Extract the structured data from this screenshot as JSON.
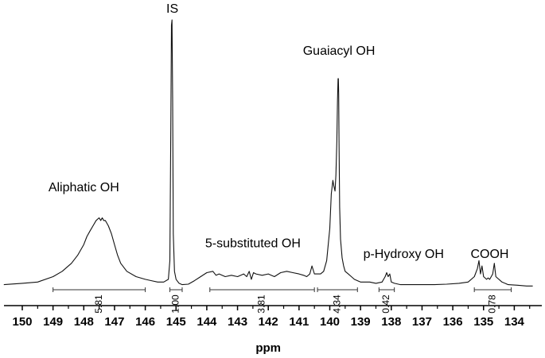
{
  "chart_data": {
    "type": "line",
    "xlabel": "ppm",
    "xlim": [
      150.6,
      133.4
    ],
    "x_reversed": true,
    "x_ticks": [
      "150",
      "149",
      "148",
      "147",
      "146",
      "145",
      "144",
      "143",
      "142",
      "141",
      "140",
      "139",
      "138",
      "137",
      "136",
      "135",
      "134"
    ],
    "series": [
      {
        "x": [
          150.6,
          150.0,
          149.5,
          149.0,
          148.7,
          148.4,
          148.2,
          148.0,
          147.9,
          147.8,
          147.7,
          147.6,
          147.5,
          147.45,
          147.4,
          147.35,
          147.3,
          147.25,
          147.2,
          147.1,
          147.0,
          146.9,
          146.8,
          146.6,
          146.3,
          146.0,
          145.8,
          145.6,
          145.4,
          145.25,
          145.2,
          145.17,
          145.15,
          145.13,
          145.11,
          145.09,
          145.05,
          145.0,
          144.9,
          144.8,
          144.6,
          144.4,
          144.2,
          144.0,
          143.8,
          143.7,
          143.6,
          143.4,
          143.2,
          143.0,
          142.8,
          142.7,
          142.62,
          142.55,
          142.48,
          142.4,
          142.2,
          142.0,
          141.8,
          141.6,
          141.4,
          141.2,
          141.0,
          140.85,
          140.75,
          140.65,
          140.58,
          140.5,
          140.3,
          140.2,
          140.1,
          140.0,
          139.95,
          139.9,
          139.87,
          139.83,
          139.8,
          139.77,
          139.75,
          139.73,
          139.72,
          139.71,
          139.7,
          139.68,
          139.65,
          139.6,
          139.55,
          139.5,
          139.4,
          139.3,
          139.2,
          139.1,
          139.0,
          138.9,
          138.7,
          138.5,
          138.3,
          138.2,
          138.15,
          138.1,
          138.05,
          138.0,
          137.9,
          137.7,
          137.5,
          137.3,
          137.0,
          136.6,
          136.2,
          135.8,
          135.5,
          135.3,
          135.2,
          135.15,
          135.1,
          135.05,
          135.0,
          134.9,
          134.85,
          134.8,
          134.75,
          134.7,
          134.65,
          134.6,
          134.4,
          134.2,
          133.9,
          133.6,
          133.4
        ],
        "y": [
          0.01,
          0.015,
          0.02,
          0.04,
          0.06,
          0.09,
          0.12,
          0.16,
          0.19,
          0.21,
          0.23,
          0.25,
          0.26,
          0.25,
          0.26,
          0.25,
          0.25,
          0.24,
          0.23,
          0.2,
          0.16,
          0.12,
          0.09,
          0.06,
          0.04,
          0.03,
          0.025,
          0.02,
          0.02,
          0.03,
          0.1,
          0.6,
          0.98,
          1.0,
          0.7,
          0.2,
          0.06,
          0.03,
          0.015,
          0.01,
          0.012,
          0.025,
          0.04,
          0.055,
          0.06,
          0.045,
          0.05,
          0.04,
          0.045,
          0.04,
          0.05,
          0.04,
          0.06,
          0.03,
          0.055,
          0.05,
          0.045,
          0.05,
          0.04,
          0.055,
          0.06,
          0.055,
          0.05,
          0.045,
          0.04,
          0.05,
          0.08,
          0.05,
          0.05,
          0.06,
          0.1,
          0.22,
          0.35,
          0.4,
          0.38,
          0.36,
          0.42,
          0.55,
          0.7,
          0.78,
          0.78,
          0.72,
          0.55,
          0.3,
          0.18,
          0.11,
          0.08,
          0.06,
          0.05,
          0.04,
          0.03,
          0.025,
          0.02,
          0.02,
          0.02,
          0.015,
          0.02,
          0.04,
          0.055,
          0.04,
          0.05,
          0.02,
          0.015,
          0.01,
          0.01,
          0.01,
          0.01,
          0.01,
          0.012,
          0.015,
          0.02,
          0.04,
          0.07,
          0.1,
          0.05,
          0.08,
          0.04,
          0.03,
          0.035,
          0.03,
          0.04,
          0.05,
          0.09,
          0.04,
          0.02,
          0.01,
          0.008,
          0.005,
          0.005
        ]
      }
    ],
    "annotations": [
      {
        "label": "IS",
        "x": 145.12,
        "y": 1.0
      },
      {
        "label": "Aliphatic OH",
        "x": 148.0,
        "y": 0.33
      },
      {
        "label": "5-substituted OH",
        "x": 142.5,
        "y": 0.12
      },
      {
        "label": "Guaiacyl OH",
        "x": 139.7,
        "y": 0.84
      },
      {
        "label": "p-Hydroxy OH",
        "x": 137.6,
        "y": 0.08
      },
      {
        "label": "COOH",
        "x": 134.8,
        "y": 0.08
      }
    ],
    "integrals": [
      {
        "range": [
          149.0,
          146.0
        ],
        "value": "5.81"
      },
      {
        "range": [
          145.2,
          144.8
        ],
        "value": "1.00"
      },
      {
        "range": [
          143.9,
          140.5
        ],
        "value": "3.81"
      },
      {
        "range": [
          140.4,
          139.1
        ],
        "value": "4.34"
      },
      {
        "range": [
          138.4,
          137.9
        ],
        "value": "0.42"
      },
      {
        "range": [
          135.3,
          134.1
        ],
        "value": "0.78"
      }
    ]
  }
}
